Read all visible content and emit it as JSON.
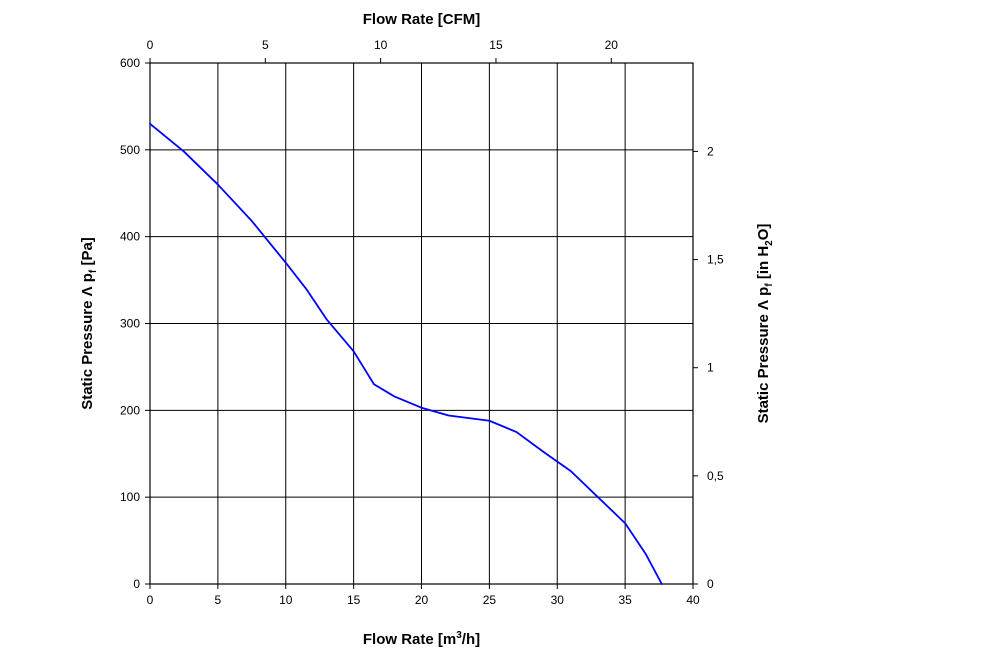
{
  "chart_data": {
    "type": "line",
    "title": "",
    "colors": {
      "series": "#0000ff",
      "grid": "#000000",
      "background": "#ffffff"
    },
    "grid": true,
    "legend": "none",
    "axes": {
      "x_bottom": {
        "label_prefix": "Flow Rate [m",
        "label_sup": "3",
        "label_suffix": "/h]",
        "range": [
          0,
          40
        ],
        "ticks": [
          0,
          5,
          10,
          15,
          20,
          25,
          30,
          35,
          40
        ],
        "tick_labels": [
          "0",
          "5",
          "10",
          "15",
          "20",
          "25",
          "30",
          "35",
          "40"
        ]
      },
      "x_top": {
        "label": "Flow Rate [CFM]",
        "ticks": [
          0,
          5,
          10,
          15,
          20
        ],
        "tick_labels": [
          "0",
          "5",
          "10",
          "15",
          "20"
        ],
        "m3h_per_cfm": 1.699
      },
      "y_left": {
        "label_prefix": "Static Pressure Λ p",
        "label_sub": "f",
        "label_suffix": " [Pa]",
        "range": [
          0,
          600
        ],
        "ticks": [
          0,
          100,
          200,
          300,
          400,
          500,
          600
        ],
        "tick_labels": [
          "0",
          "100",
          "200",
          "300",
          "400",
          "500",
          "600"
        ]
      },
      "y_right": {
        "label_prefix": "Static Pressure Λ p",
        "label_sub": "f",
        "label_mid": " [in H",
        "label_sub2": "2",
        "label_suffix": "O]",
        "ticks": [
          0,
          0.5,
          1,
          1.5,
          2
        ],
        "tick_labels": [
          "0",
          "0,5",
          "1",
          "1,5",
          "2"
        ],
        "pa_per_inH2O": 249.09
      }
    },
    "series": [
      {
        "x": [
          0,
          2.5,
          5,
          7.5,
          10,
          11.5,
          13,
          15,
          16.5,
          18,
          20,
          22,
          25,
          27,
          29,
          31,
          33,
          35,
          36.5,
          37.7
        ],
        "y": [
          530,
          498,
          460,
          418,
          370,
          340,
          305,
          268,
          230,
          216,
          203,
          194,
          188,
          175,
          152,
          130,
          100,
          70,
          35,
          0
        ]
      }
    ]
  }
}
